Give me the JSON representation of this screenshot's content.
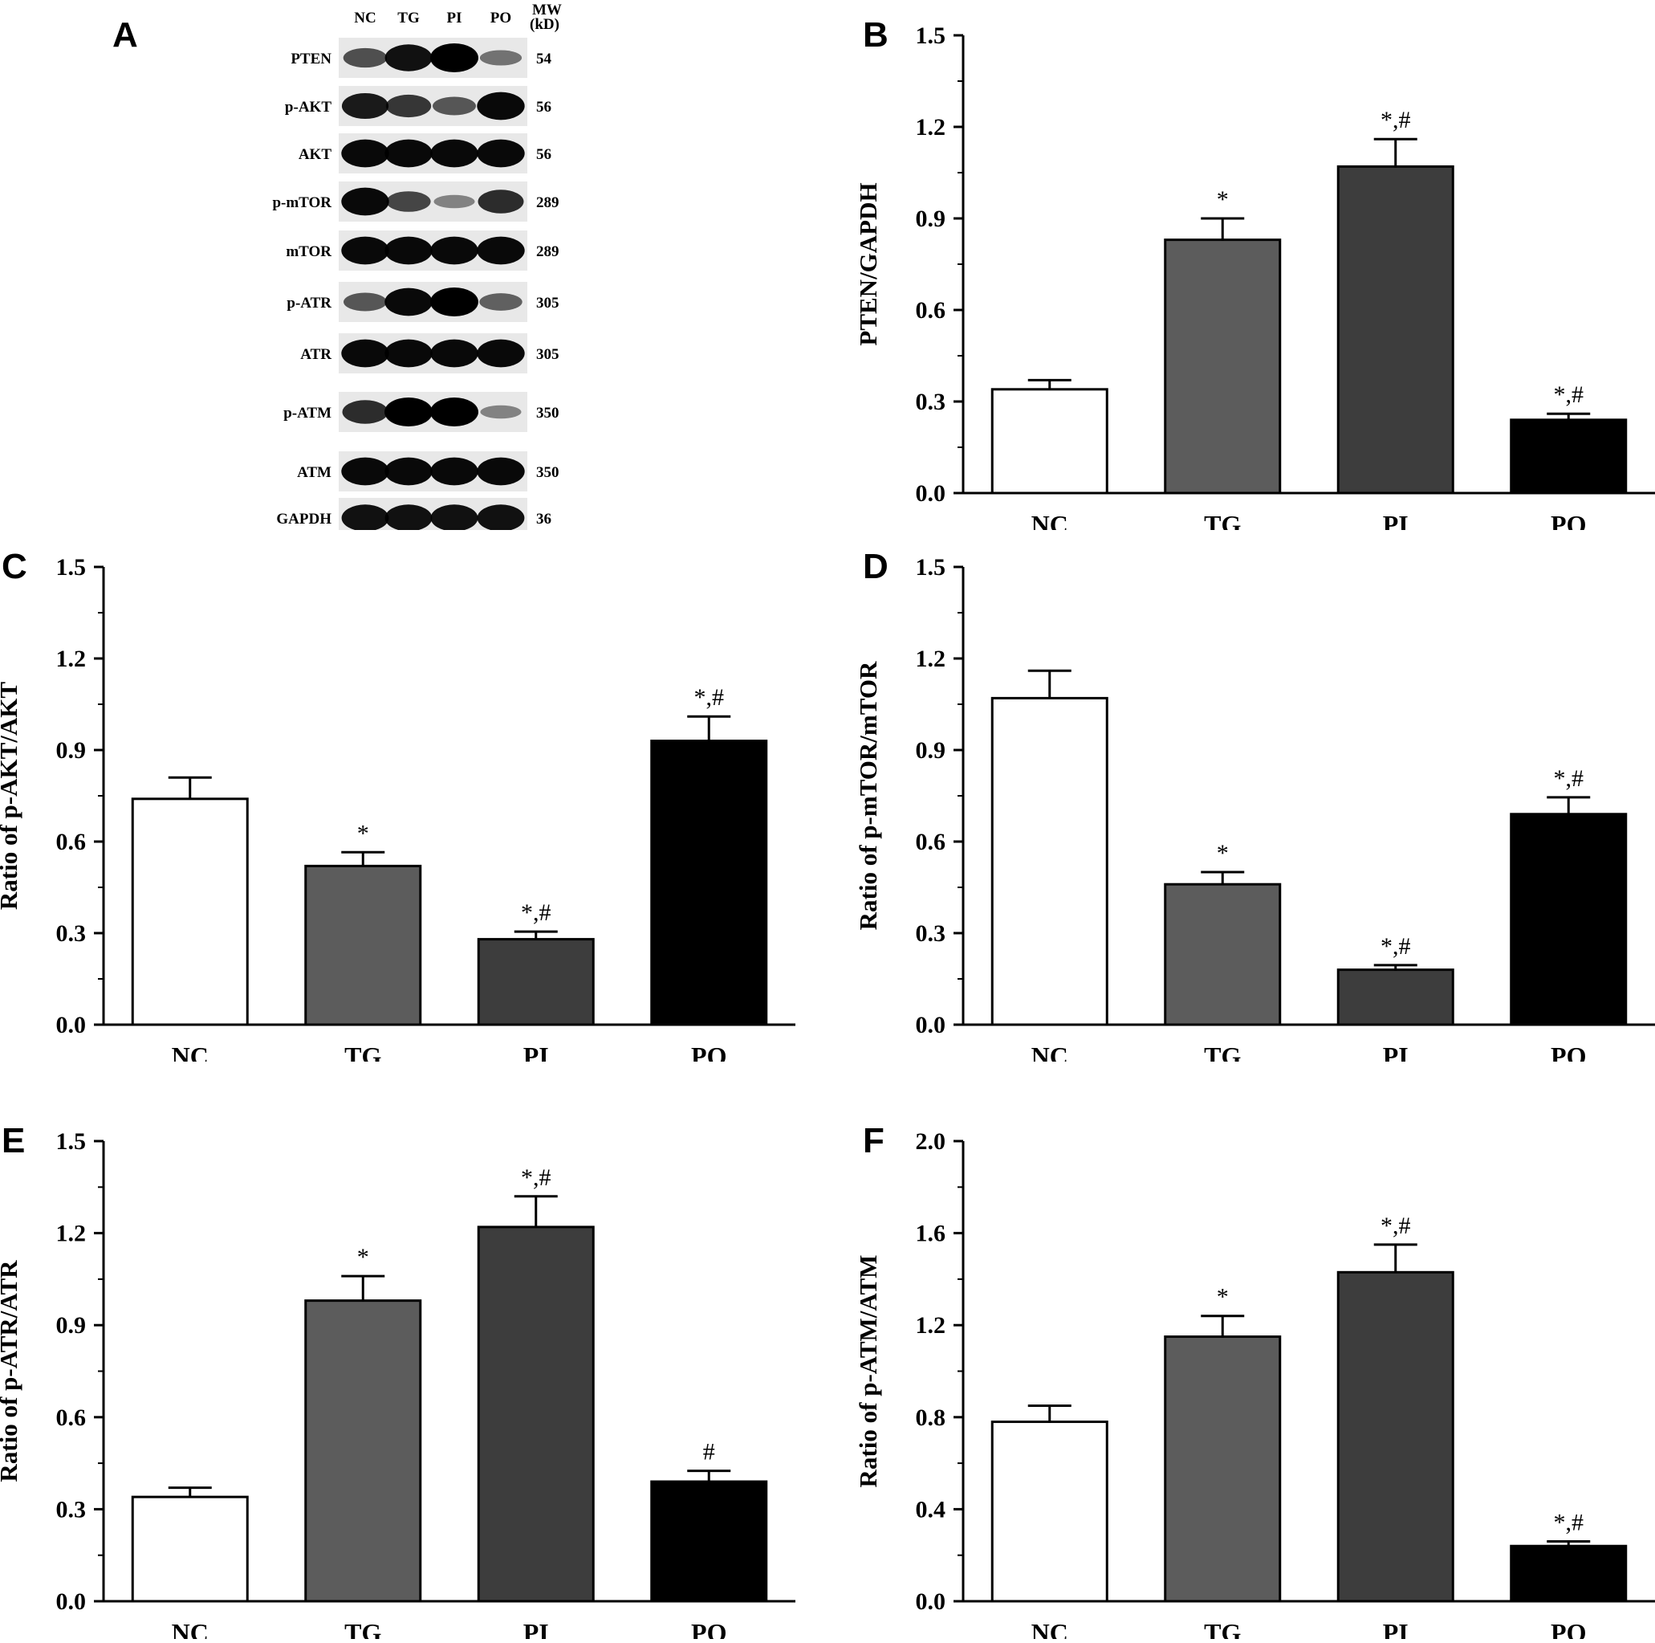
{
  "western_blot": {
    "panel_letter": "A",
    "lanes": [
      "NC",
      "TG",
      "PI",
      "PO"
    ],
    "mw_header_line1": "MW",
    "mw_header_line2": "(kD)",
    "rows": [
      {
        "label": "PTEN",
        "mw": "54",
        "intensity": [
          0.55,
          0.9,
          1.0,
          0.35
        ]
      },
      {
        "label": "p-AKT",
        "mw": "56",
        "intensity": [
          0.85,
          0.7,
          0.5,
          0.95
        ]
      },
      {
        "label": "AKT",
        "mw": "56",
        "intensity": [
          0.95,
          0.95,
          0.95,
          0.95
        ]
      },
      {
        "label": "p-mTOR",
        "mw": "289",
        "intensity": [
          0.95,
          0.6,
          0.25,
          0.75
        ]
      },
      {
        "label": "mTOR",
        "mw": "289",
        "intensity": [
          0.95,
          0.95,
          0.95,
          0.95
        ]
      },
      {
        "label": "p-ATR",
        "mw": "305",
        "intensity": [
          0.5,
          0.95,
          1.0,
          0.45
        ]
      },
      {
        "label": "ATR",
        "mw": "305",
        "intensity": [
          0.95,
          0.95,
          0.95,
          0.95
        ]
      },
      {
        "label": "p-ATM",
        "mw": "350",
        "intensity": [
          0.75,
          1.0,
          1.0,
          0.25
        ]
      },
      {
        "label": "ATM",
        "mw": "350",
        "intensity": [
          0.95,
          0.95,
          0.95,
          0.95
        ]
      },
      {
        "label": "GAPDH",
        "mw": "36",
        "intensity": [
          0.9,
          0.9,
          0.9,
          0.9
        ]
      }
    ]
  },
  "colors": {
    "NC": "#ffffff",
    "TG": "#5c5c5c",
    "PI": "#3d3d3d",
    "PO": "#000000",
    "axis": "#000000"
  },
  "chart_data": [
    {
      "panel": "B",
      "type": "bar",
      "categories": [
        "NC",
        "TG",
        "PI",
        "PO"
      ],
      "values": [
        0.34,
        0.83,
        1.07,
        0.24
      ],
      "errors": [
        0.03,
        0.07,
        0.09,
        0.02
      ],
      "annotations": [
        "",
        "*",
        "*,#",
        "*,#"
      ],
      "ylabel": "PTEN/GAPDH",
      "ylim": [
        0,
        1.5
      ],
      "yticks": [
        "0.0",
        "0.3",
        "0.6",
        "0.9",
        "1.2",
        "1.5"
      ],
      "grid": false
    },
    {
      "panel": "C",
      "type": "bar",
      "categories": [
        "NC",
        "TG",
        "PI",
        "PO"
      ],
      "values": [
        0.74,
        0.52,
        0.28,
        0.93
      ],
      "errors": [
        0.07,
        0.045,
        0.025,
        0.08
      ],
      "annotations": [
        "",
        "*",
        "*,#",
        "*,#"
      ],
      "ylabel": "Ratio of p-AKT/AKT",
      "ylim": [
        0,
        1.5
      ],
      "yticks": [
        "0.0",
        "0.3",
        "0.6",
        "0.9",
        "1.2",
        "1.5"
      ],
      "grid": false
    },
    {
      "panel": "D",
      "type": "bar",
      "categories": [
        "NC",
        "TG",
        "PI",
        "PO"
      ],
      "values": [
        1.07,
        0.46,
        0.18,
        0.69
      ],
      "errors": [
        0.09,
        0.04,
        0.015,
        0.055
      ],
      "annotations": [
        "",
        "*",
        "*,#",
        "*,#"
      ],
      "ylabel": "Ratio of p-mTOR/mTOR",
      "ylim": [
        0,
        1.5
      ],
      "yticks": [
        "0.0",
        "0.3",
        "0.6",
        "0.9",
        "1.2",
        "1.5"
      ],
      "grid": false
    },
    {
      "panel": "E",
      "type": "bar",
      "categories": [
        "NC",
        "TG",
        "PI",
        "PO"
      ],
      "values": [
        0.34,
        0.98,
        1.22,
        0.39
      ],
      "errors": [
        0.03,
        0.08,
        0.1,
        0.035
      ],
      "annotations": [
        "",
        "*",
        "*,#",
        "#"
      ],
      "ylabel": "Ratio of p-ATR/ATR",
      "ylim": [
        0,
        1.5
      ],
      "yticks": [
        "0.0",
        "0.3",
        "0.6",
        "0.9",
        "1.2",
        "1.5"
      ],
      "grid": false
    },
    {
      "panel": "F",
      "type": "bar",
      "categories": [
        "NC",
        "TG",
        "PI",
        "PO"
      ],
      "values": [
        0.78,
        1.15,
        1.43,
        0.24
      ],
      "errors": [
        0.07,
        0.09,
        0.12,
        0.02
      ],
      "annotations": [
        "",
        "*",
        "*,#",
        "*,#"
      ],
      "ylabel": "Ratio of p-ATM/ATM",
      "ylim": [
        0,
        2.0
      ],
      "yticks": [
        "0.0",
        "0.4",
        "0.8",
        "1.2",
        "1.6",
        "2.0"
      ],
      "grid": false
    }
  ]
}
